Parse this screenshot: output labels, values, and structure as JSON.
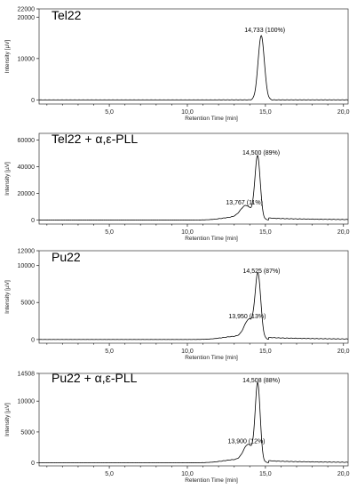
{
  "chart_data": [
    {
      "type": "line",
      "title": "Tel22",
      "xlabel": "Retention Time [min]",
      "ylabel": "Intensity [µV]",
      "xlim": [
        0.5,
        20.3
      ],
      "ylim": [
        -1000,
        22000
      ],
      "x_ticks": [
        "5,0",
        "10,0",
        "15,0",
        "20,0"
      ],
      "y_ticks": [
        "0",
        "10000",
        "20000",
        "22000"
      ],
      "baseline": 0,
      "peaks": [
        {
          "x": 14.733,
          "height": 15500,
          "width": 0.2,
          "label": "14,733 (100%)"
        }
      ]
    },
    {
      "type": "line",
      "title": "Tel22 + α,ε-PLL",
      "xlabel": "Retention Time [min]",
      "ylabel": "Intensity [µV]",
      "xlim": [
        0.5,
        20.3
      ],
      "ylim": [
        -3000,
        65000
      ],
      "x_ticks": [
        "5,0",
        "10,0",
        "15,0",
        "20,0"
      ],
      "y_ticks": [
        "0",
        "20000",
        "40000",
        "60000"
      ],
      "baseline": 0,
      "peaks": [
        {
          "x": 13.767,
          "height": 9000,
          "width": 0.35,
          "label": "13,767 (11%)"
        },
        {
          "x": 14.5,
          "height": 46500,
          "width": 0.17,
          "label": "14,500 (89%)"
        }
      ]
    },
    {
      "type": "line",
      "title": "Pu22",
      "xlabel": "Retention Time [min]",
      "ylabel": "Intensity [µV]",
      "xlim": [
        0.5,
        20.3
      ],
      "ylim": [
        -500,
        12000
      ],
      "x_ticks": [
        "5,0",
        "10,0",
        "15,0",
        "20,0"
      ],
      "y_ticks": [
        "0",
        "5000",
        "10000",
        "12000"
      ],
      "baseline": 0,
      "peaks": [
        {
          "x": 13.95,
          "height": 2400,
          "width": 0.3,
          "label": "13,950 (13%)"
        },
        {
          "x": 14.525,
          "height": 8500,
          "width": 0.18,
          "label": "14,525 (87%)"
        }
      ]
    },
    {
      "type": "line",
      "title": "Pu22 + α,ε-PLL",
      "xlabel": "Retention Time [min]",
      "ylabel": "Intensity [µV]",
      "xlim": [
        0.5,
        20.3
      ],
      "ylim": [
        -500,
        14500
      ],
      "x_ticks": [
        "5,0",
        "10,0",
        "15,0",
        "20,0"
      ],
      "y_ticks": [
        "0",
        "5000",
        "10000",
        "14508"
      ],
      "baseline": 0,
      "peaks": [
        {
          "x": 13.9,
          "height": 2600,
          "width": 0.3,
          "label": "13,900 (12%)"
        },
        {
          "x": 14.508,
          "height": 12500,
          "width": 0.16,
          "label": "14,508 (88%)"
        }
      ]
    }
  ]
}
